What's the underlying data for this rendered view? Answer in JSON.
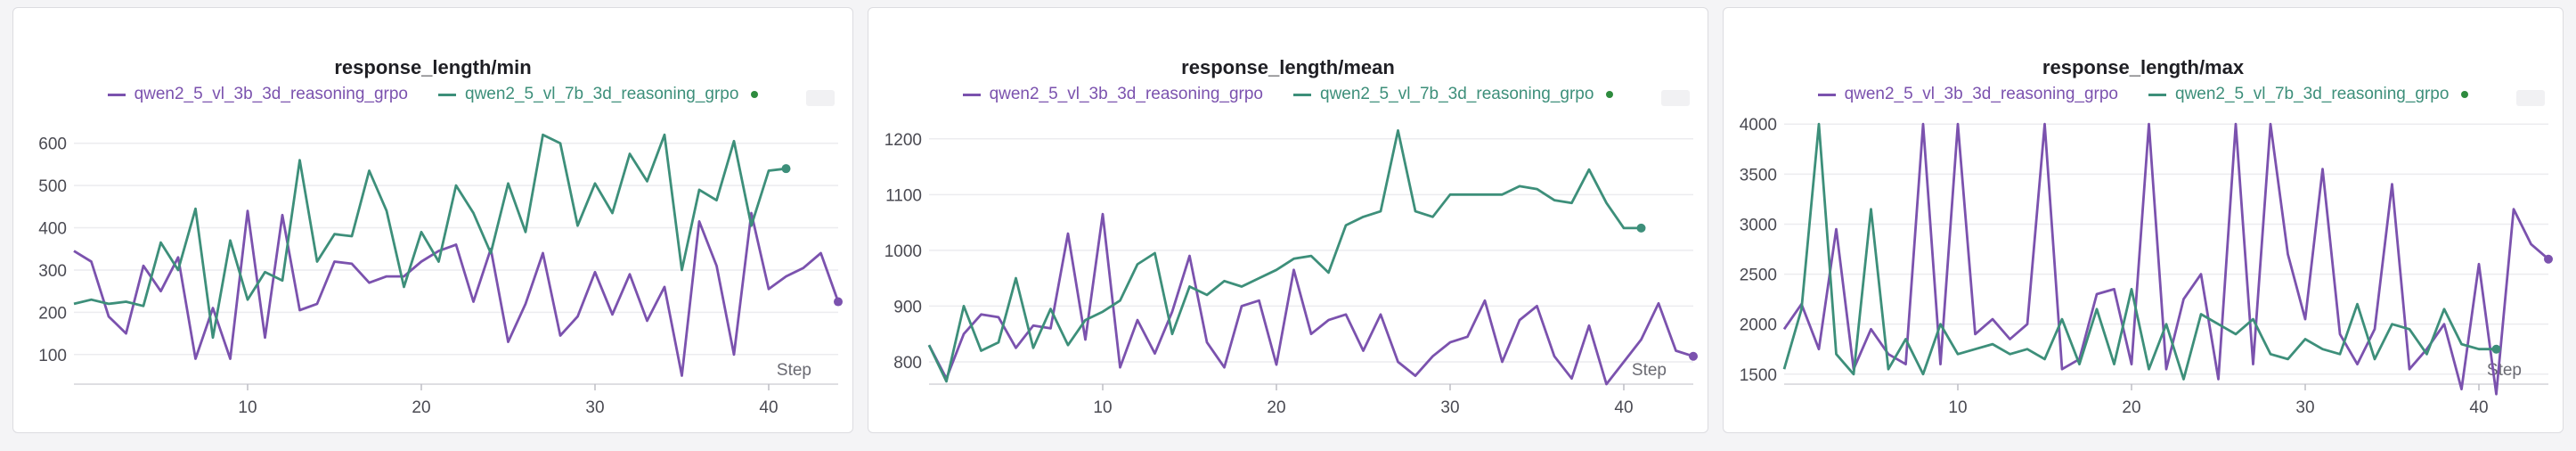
{
  "chart_data": [
    {
      "type": "line",
      "title": "response_length/min",
      "xlabel": "Step",
      "ylabel": "",
      "xlim": [
        0,
        44
      ],
      "ylim": [
        30,
        650
      ],
      "xticks": [
        10,
        20,
        30,
        40
      ],
      "yticks": [
        100,
        200,
        300,
        400,
        500,
        600
      ],
      "series": [
        {
          "name": "qwen2_5_vl_3b_3d_reasoning_grpo",
          "color": "#7b52ae",
          "marker_at_end": false,
          "x": [
            0,
            1,
            2,
            3,
            4,
            5,
            6,
            7,
            8,
            9,
            10,
            11,
            12,
            13,
            14,
            15,
            16,
            17,
            18,
            19,
            20,
            21,
            22,
            23,
            24,
            25,
            26,
            27,
            28,
            29,
            30,
            31,
            32,
            33,
            34,
            35,
            36,
            37,
            38,
            39,
            40,
            41,
            42,
            43,
            44
          ],
          "y": [
            345,
            320,
            190,
            150,
            310,
            250,
            330,
            90,
            210,
            90,
            440,
            140,
            430,
            205,
            220,
            320,
            315,
            270,
            285,
            285,
            320,
            345,
            360,
            225,
            350,
            130,
            220,
            340,
            145,
            190,
            295,
            195,
            290,
            180,
            260,
            50,
            415,
            310,
            100,
            435,
            255,
            285,
            305,
            340,
            225
          ]
        },
        {
          "name": "qwen2_5_vl_7b_3d_reasoning_grpo",
          "color": "#3d8f7a",
          "marker_at_end": true,
          "x": [
            0,
            1,
            2,
            3,
            4,
            5,
            6,
            7,
            8,
            9,
            10,
            11,
            12,
            13,
            14,
            15,
            16,
            17,
            18,
            19,
            20,
            21,
            22,
            23,
            24,
            25,
            26,
            27,
            28,
            29,
            30,
            31,
            32,
            33,
            34,
            35,
            36,
            37,
            38,
            39,
            40,
            41
          ],
          "y": [
            220,
            230,
            220,
            225,
            215,
            365,
            300,
            445,
            140,
            370,
            230,
            295,
            275,
            560,
            320,
            385,
            380,
            535,
            440,
            260,
            390,
            320,
            500,
            435,
            340,
            505,
            390,
            620,
            600,
            405,
            505,
            435,
            575,
            510,
            620,
            300,
            490,
            465,
            605,
            405,
            535,
            540
          ]
        }
      ]
    },
    {
      "type": "line",
      "title": "response_length/mean",
      "xlabel": "Step",
      "ylabel": "",
      "xlim": [
        0,
        44
      ],
      "ylim": [
        760,
        1230
      ],
      "xticks": [
        10,
        20,
        30,
        40
      ],
      "yticks": [
        800,
        900,
        1000,
        1100,
        1200
      ],
      "series": [
        {
          "name": "qwen2_5_vl_3b_3d_reasoning_grpo",
          "color": "#7b52ae",
          "marker_at_end": false,
          "x": [
            0,
            1,
            2,
            3,
            4,
            5,
            6,
            7,
            8,
            9,
            10,
            11,
            12,
            13,
            14,
            15,
            16,
            17,
            18,
            19,
            20,
            21,
            22,
            23,
            24,
            25,
            26,
            27,
            28,
            29,
            30,
            31,
            32,
            33,
            34,
            35,
            36,
            37,
            38,
            39,
            40,
            41,
            42,
            43,
            44
          ],
          "y": [
            830,
            770,
            850,
            885,
            880,
            825,
            865,
            860,
            1030,
            840,
            1065,
            790,
            875,
            815,
            890,
            990,
            835,
            790,
            900,
            910,
            795,
            965,
            850,
            875,
            885,
            820,
            885,
            800,
            775,
            810,
            835,
            845,
            910,
            800,
            875,
            900,
            810,
            770,
            865,
            760,
            800,
            840,
            905,
            820,
            810
          ]
        },
        {
          "name": "qwen2_5_vl_7b_3d_reasoning_grpo",
          "color": "#3d8f7a",
          "marker_at_end": true,
          "x": [
            0,
            1,
            2,
            3,
            4,
            5,
            6,
            7,
            8,
            9,
            10,
            11,
            12,
            13,
            14,
            15,
            16,
            17,
            18,
            19,
            20,
            21,
            22,
            23,
            24,
            25,
            26,
            27,
            28,
            29,
            30,
            31,
            32,
            33,
            34,
            35,
            36,
            37,
            38,
            39,
            40,
            41
          ],
          "y": [
            830,
            765,
            900,
            820,
            835,
            950,
            825,
            895,
            830,
            875,
            890,
            910,
            975,
            995,
            850,
            935,
            920,
            945,
            935,
            950,
            965,
            985,
            990,
            960,
            1045,
            1060,
            1070,
            1215,
            1070,
            1060,
            1100,
            1100,
            1100,
            1100,
            1115,
            1110,
            1090,
            1085,
            1145,
            1085,
            1040,
            1040
          ]
        }
      ]
    },
    {
      "type": "line",
      "title": "response_length/max",
      "xlabel": "Step",
      "ylabel": "",
      "xlim": [
        0,
        44
      ],
      "ylim": [
        1400,
        4020
      ],
      "xticks": [
        10,
        20,
        30,
        40
      ],
      "yticks": [
        1500,
        2000,
        2500,
        3000,
        3500,
        4000
      ],
      "series": [
        {
          "name": "qwen2_5_vl_3b_3d_reasoning_grpo",
          "color": "#7b52ae",
          "marker_at_end": false,
          "x": [
            0,
            1,
            2,
            3,
            4,
            5,
            6,
            7,
            8,
            9,
            10,
            11,
            12,
            13,
            14,
            15,
            16,
            17,
            18,
            19,
            20,
            21,
            22,
            23,
            24,
            25,
            26,
            27,
            28,
            29,
            30,
            31,
            32,
            33,
            34,
            35,
            36,
            37,
            38,
            39,
            40,
            41,
            42,
            43,
            44
          ],
          "y": [
            1950,
            2200,
            1750,
            2950,
            1550,
            1950,
            1700,
            1600,
            4000,
            1600,
            4000,
            1900,
            2050,
            1850,
            2000,
            4000,
            1550,
            1650,
            2300,
            2350,
            1600,
            4000,
            1550,
            2250,
            2500,
            1450,
            4000,
            1600,
            4000,
            2700,
            2050,
            3550,
            1900,
            1600,
            1950,
            3400,
            1550,
            1750,
            2000,
            1350,
            2600,
            1300,
            3150,
            2800,
            2650
          ]
        },
        {
          "name": "qwen2_5_vl_7b_3d_reasoning_grpo",
          "color": "#3d8f7a",
          "marker_at_end": true,
          "x": [
            0,
            1,
            2,
            3,
            4,
            5,
            6,
            7,
            8,
            9,
            10,
            11,
            12,
            13,
            14,
            15,
            16,
            17,
            18,
            19,
            20,
            21,
            22,
            23,
            24,
            25,
            26,
            27,
            28,
            29,
            30,
            31,
            32,
            33,
            34,
            35,
            36,
            37,
            38,
            39,
            40,
            41
          ],
          "y": [
            1550,
            2150,
            4000,
            1700,
            1500,
            3150,
            1550,
            1850,
            1500,
            2000,
            1700,
            1750,
            1800,
            1700,
            1750,
            1650,
            2050,
            1600,
            2150,
            1600,
            2350,
            1550,
            2000,
            1450,
            2100,
            2000,
            1900,
            2050,
            1700,
            1650,
            1850,
            1750,
            1700,
            2200,
            1650,
            2000,
            1950,
            1700,
            2150,
            1800,
            1750,
            1750
          ]
        }
      ]
    }
  ]
}
